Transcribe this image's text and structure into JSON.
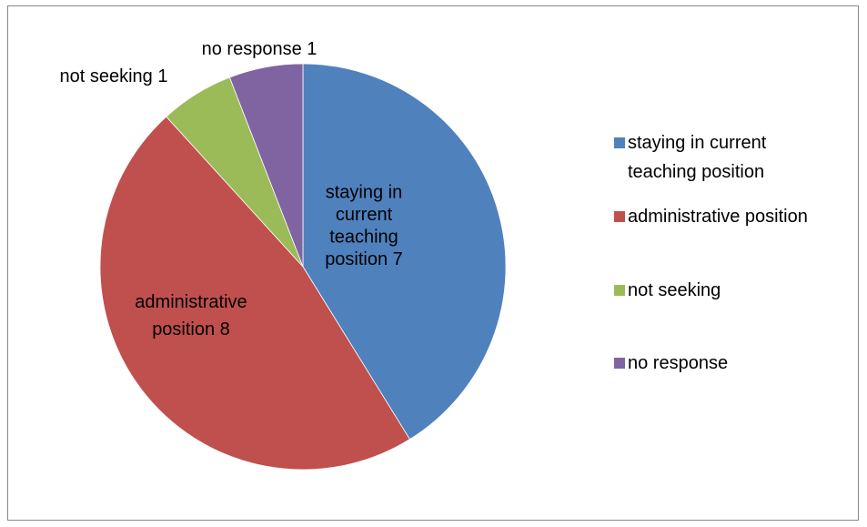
{
  "chart_data": {
    "type": "pie",
    "title": "",
    "categories": [
      "staying in current teaching position",
      "administrative position",
      "not seeking",
      "no response"
    ],
    "values": [
      7,
      8,
      1,
      1
    ],
    "colors": [
      "#4F81BD",
      "#C0504D",
      "#9BBB59",
      "#8064A2"
    ],
    "data_labels": [
      [
        "staying in",
        "current",
        "teaching",
        "position 7"
      ],
      [
        "administrative",
        "position 8"
      ],
      [
        "not seeking 1"
      ],
      [
        "no response 1"
      ]
    ],
    "legend": {
      "placement": "right",
      "entries": [
        [
          "staying in current",
          "teaching position"
        ],
        [
          "administrative position"
        ],
        [
          "not seeking"
        ],
        [
          "no response"
        ]
      ]
    }
  }
}
